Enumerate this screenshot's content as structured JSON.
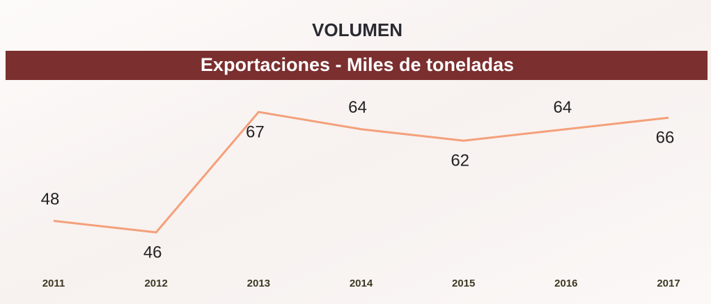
{
  "chart_data": {
    "type": "line",
    "title": "VOLUMEN",
    "subtitle": "Exportaciones - Miles de toneladas",
    "categories": [
      "2011",
      "2012",
      "2013",
      "2014",
      "2015",
      "2016",
      "2017"
    ],
    "values": [
      48,
      46,
      67,
      64,
      62,
      64,
      66
    ],
    "color": "#f4a07a"
  }
}
